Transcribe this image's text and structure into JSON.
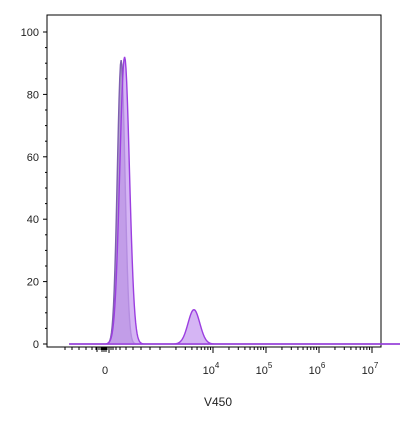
{
  "chart_data": {
    "type": "area",
    "xlabel": "V450",
    "ylabel": "",
    "ylim": [
      0,
      100
    ],
    "x_scale": "biexponential",
    "y_ticks": [
      "0",
      "20",
      "40",
      "60",
      "80",
      "100"
    ],
    "x_ticks": [
      {
        "base": "0",
        "exp": ""
      },
      {
        "base": "10",
        "exp": "4"
      },
      {
        "base": "10",
        "exp": "5"
      },
      {
        "base": "10",
        "exp": "6"
      },
      {
        "base": "10",
        "exp": "7"
      }
    ],
    "grid": false,
    "series": [
      {
        "fill": "#9a7fc0",
        "stroke": "#7e5fb0",
        "peaks": [
          {
            "center": 0.35,
            "height": 91,
            "sigma": 0.11
          }
        ]
      },
      {
        "fill": "#c79cf0",
        "stroke": "#9b3ee0",
        "peaks": [
          {
            "center": 0.45,
            "height": 92,
            "sigma": 0.14
          },
          {
            "center": 2.45,
            "height": 11,
            "sigma": 0.17
          }
        ]
      }
    ]
  }
}
